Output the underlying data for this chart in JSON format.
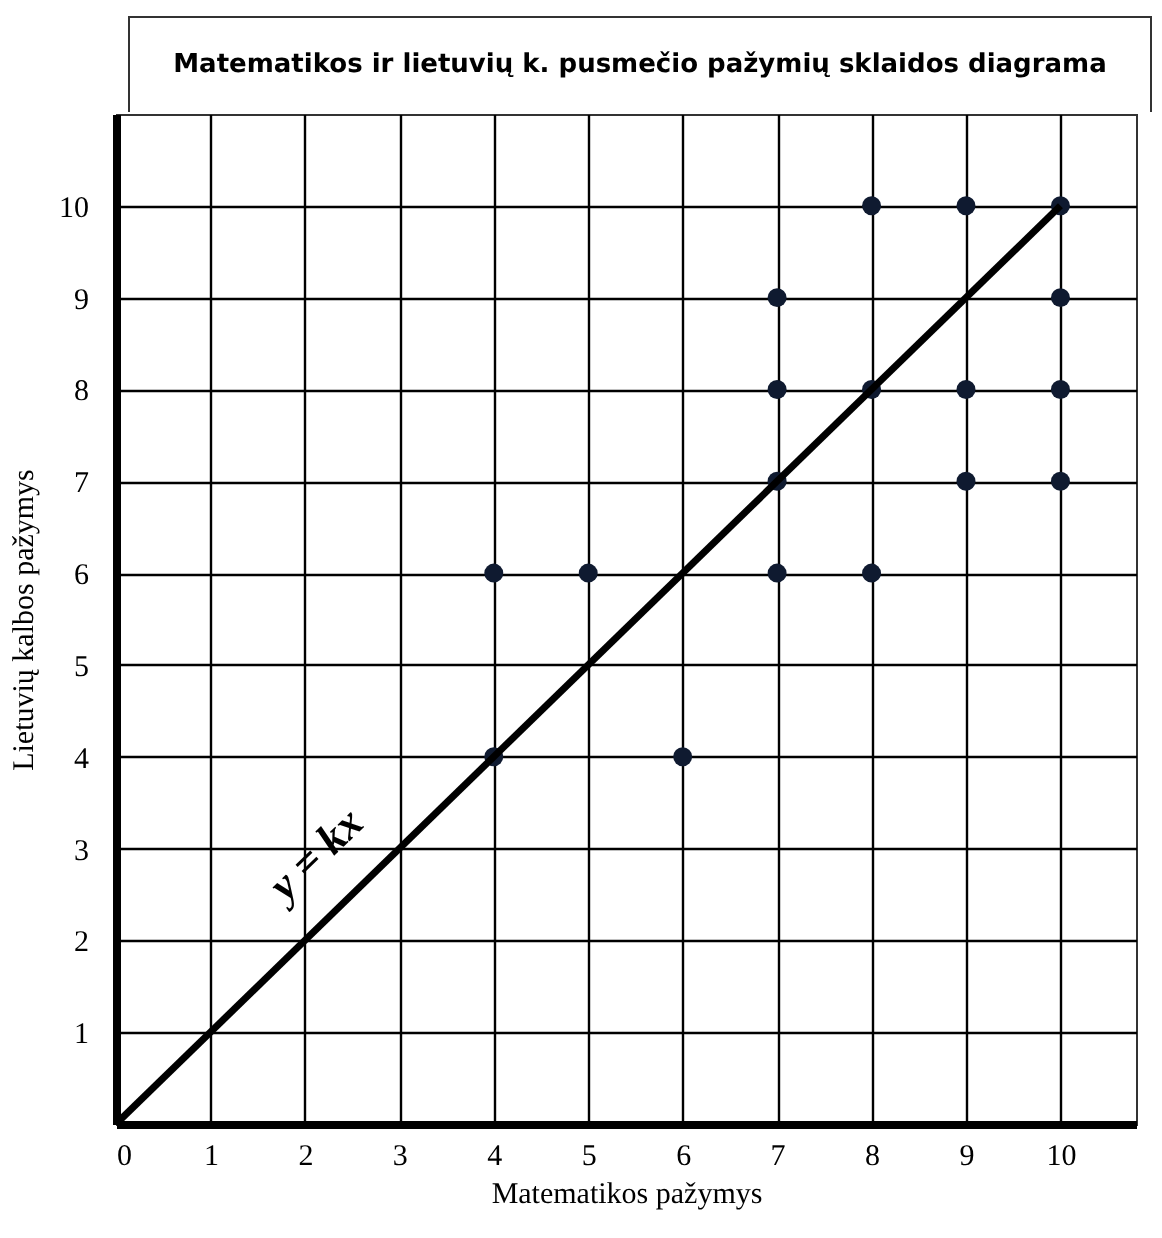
{
  "chart_data": {
    "type": "scatter",
    "title": "Matematikos ir lietuvių k. pusmečio pažymių sklaidos diagrama",
    "xlabel": "Matematikos pažymys",
    "ylabel": "Lietuvių kalbos pažymys",
    "series": [
      {
        "color": "#0f1a30",
        "marker": "circle",
        "x": [
          4,
          5,
          4,
          6,
          7,
          7,
          7,
          7,
          8,
          8,
          8,
          9,
          9,
          9,
          10,
          10,
          10,
          10
        ],
        "values": [
          6,
          6,
          4,
          4,
          9,
          8,
          7,
          6,
          10,
          8,
          6,
          10,
          8,
          7,
          10,
          9,
          8,
          7
        ]
      },
      {
        "type": "line",
        "color": "#000000",
        "marker": "none",
        "x": [
          0,
          10
        ],
        "values": [
          0,
          10
        ]
      }
    ],
    "annotations": [
      "y = kx"
    ],
    "xlim": [
      0,
      10.8
    ],
    "ylim": [
      0,
      11
    ],
    "xticks": [
      0,
      1,
      2,
      3,
      4,
      5,
      6,
      7,
      8,
      9,
      10
    ],
    "yticks": [
      {
        "value": 0,
        "label": null
      },
      1,
      2,
      3,
      4,
      5,
      6,
      7,
      8,
      9,
      10
    ],
    "grid": true,
    "line_style": "solid"
  }
}
